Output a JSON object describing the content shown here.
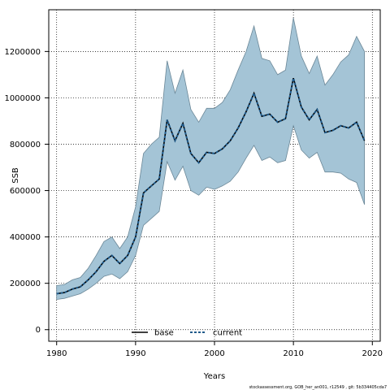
{
  "chart_data": {
    "type": "area",
    "title": "",
    "xlabel": "Years",
    "ylabel": "SSB",
    "xlim": [
      1979,
      2021
    ],
    "ylim": [
      -50000,
      1380000
    ],
    "xticks": [
      1980,
      1990,
      2000,
      2010,
      2020
    ],
    "yticks": [
      0,
      200000,
      400000,
      600000,
      800000,
      1000000,
      1200000
    ],
    "ytick_labels": [
      "0",
      "200000",
      "400000",
      "600000",
      "800000",
      "1000000",
      "1200000"
    ],
    "grid": true,
    "legend_position": "bottom-center",
    "x": [
      1980,
      1981,
      1982,
      1983,
      1984,
      1985,
      1986,
      1987,
      1988,
      1989,
      1990,
      1991,
      1992,
      1993,
      1994,
      1995,
      1996,
      1997,
      1998,
      1999,
      2000,
      2001,
      2002,
      2003,
      2004,
      2005,
      2006,
      2007,
      2008,
      2009,
      2010,
      2011,
      2012,
      2013,
      2014,
      2015,
      2016,
      2017,
      2018,
      2019
    ],
    "series": [
      {
        "name": "base",
        "style": "solid",
        "color": "#000000",
        "values": [
          155000,
          160000,
          175000,
          185000,
          215000,
          250000,
          295000,
          320000,
          285000,
          320000,
          400000,
          590000,
          620000,
          650000,
          905000,
          815000,
          890000,
          760000,
          720000,
          765000,
          760000,
          780000,
          815000,
          870000,
          940000,
          1020000,
          920000,
          930000,
          895000,
          910000,
          1085000,
          960000,
          905000,
          950000,
          850000,
          860000,
          880000,
          870000,
          895000,
          815000
        ]
      },
      {
        "name": "current",
        "style": "dashed",
        "color": "#1f5a8a",
        "values": [
          155000,
          160000,
          175000,
          185000,
          215000,
          250000,
          295000,
          320000,
          285000,
          320000,
          400000,
          590000,
          620000,
          650000,
          905000,
          815000,
          890000,
          760000,
          720000,
          765000,
          760000,
          780000,
          815000,
          870000,
          940000,
          1020000,
          920000,
          930000,
          895000,
          910000,
          1085000,
          960000,
          905000,
          950000,
          850000,
          860000,
          880000,
          870000,
          895000,
          815000
        ]
      }
    ],
    "band": {
      "color": "#a4c4d6",
      "lower": [
        130000,
        135000,
        145000,
        155000,
        175000,
        200000,
        230000,
        240000,
        220000,
        250000,
        320000,
        450000,
        480000,
        510000,
        725000,
        645000,
        705000,
        600000,
        580000,
        615000,
        605000,
        620000,
        640000,
        680000,
        740000,
        795000,
        730000,
        745000,
        720000,
        730000,
        880000,
        775000,
        740000,
        765000,
        680000,
        680000,
        675000,
        650000,
        635000,
        540000
      ],
      "upper": [
        190000,
        195000,
        215000,
        225000,
        265000,
        320000,
        380000,
        400000,
        350000,
        400000,
        530000,
        760000,
        800000,
        830000,
        1160000,
        1020000,
        1120000,
        950000,
        895000,
        955000,
        955000,
        980000,
        1035000,
        1120000,
        1200000,
        1310000,
        1170000,
        1160000,
        1100000,
        1120000,
        1345000,
        1180000,
        1105000,
        1180000,
        1055000,
        1100000,
        1155000,
        1185000,
        1265000,
        1200000
      ]
    },
    "footnote": "stockassessment.org, GOB_her_an001, r12549 , git: 5b334405cda7"
  }
}
